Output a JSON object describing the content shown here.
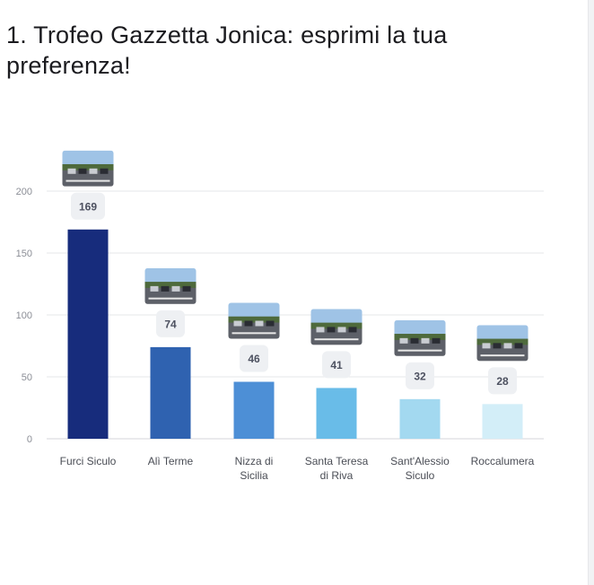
{
  "title": "1. Trofeo Gazzetta Jonica: esprimi la tua preferenza!",
  "colors": {
    "bars": [
      "#172c7c",
      "#2f62b0",
      "#4d8fd6",
      "#69bce8",
      "#a3d9f0",
      "#d3eef8"
    ],
    "grid": "#e6e7ea",
    "label_box": "#eef0f3"
  },
  "chart_data": {
    "type": "bar",
    "categories": [
      "Furci Siculo",
      "Alì Terme",
      "Nizza di Sicilia",
      "Santa Teresa di Riva",
      "Sant'Alessio Siculo",
      "Roccalumera"
    ],
    "category_lines": [
      [
        "Furci Siculo"
      ],
      [
        "Alì Terme"
      ],
      [
        "Nizza di",
        "Sicilia"
      ],
      [
        "Santa Teresa",
        "di Riva"
      ],
      [
        "Sant'Alessio",
        "Siculo"
      ],
      [
        "Roccalumera"
      ]
    ],
    "values": [
      169,
      74,
      46,
      41,
      32,
      28
    ],
    "value_labels": [
      "169",
      "74",
      "46",
      "41",
      "32",
      "28"
    ],
    "ylim": [
      0,
      200
    ],
    "yticks": [
      0,
      50,
      100,
      150,
      200
    ],
    "ytick_labels": [
      "0",
      "50",
      "100",
      "150",
      "200"
    ],
    "grid": true,
    "category_images": [
      "street-photo",
      "street-photo",
      "street-photo",
      "street-photo",
      "street-photo",
      "street-photo"
    ]
  }
}
